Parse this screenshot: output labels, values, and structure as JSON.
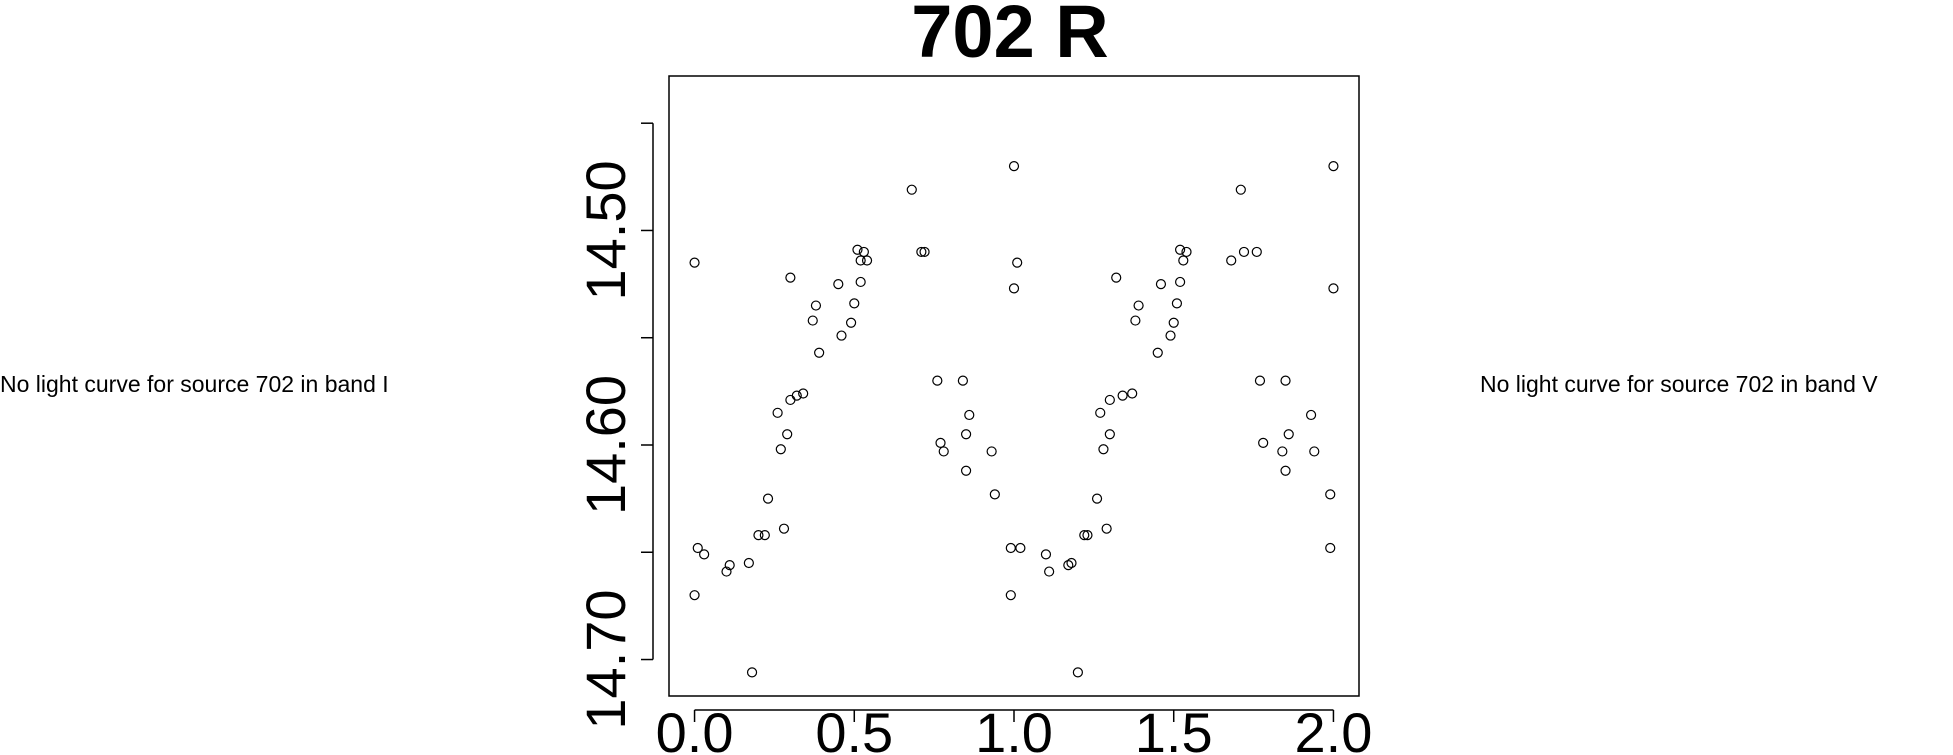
{
  "notes": {
    "left": "No light curve for source 702 in band I",
    "right": "No light curve for source 702 in band V"
  },
  "chart_data": {
    "type": "scatter",
    "title": "702 R",
    "xlabel": "",
    "ylabel": "",
    "xlim": [
      -0.08,
      2.08
    ],
    "ylim": [
      14.717,
      14.428
    ],
    "x_ticks": [
      0.0,
      0.5,
      1.0,
      1.5,
      2.0
    ],
    "x_tick_labels": [
      "0.0",
      "0.5",
      "1.0",
      "1.5",
      "2.0"
    ],
    "y_ticks": [
      14.45,
      14.5,
      14.55,
      14.6,
      14.65,
      14.7
    ],
    "y_tick_labels": [
      "",
      "14.50",
      "",
      "14.60",
      "",
      "14.70"
    ],
    "marker": "open-circle",
    "grid": false,
    "series": [
      {
        "x": [
          0.0,
          0.0,
          0.01,
          0.03,
          0.1,
          0.11,
          0.17,
          0.18,
          0.2,
          0.22,
          0.23,
          0.26,
          0.27,
          0.28,
          0.29,
          0.3,
          0.3,
          0.32,
          0.34,
          0.37,
          0.38,
          0.39,
          0.45,
          0.46,
          0.49,
          0.5,
          0.51,
          0.52,
          0.52,
          0.53,
          0.54,
          0.68,
          0.71,
          0.72,
          0.76,
          0.77,
          0.78,
          0.84,
          0.85,
          0.85,
          0.86,
          0.93,
          0.94,
          0.99,
          0.99,
          1.0,
          1.0,
          1.01,
          1.02,
          1.1,
          1.11,
          1.17,
          1.18,
          1.2,
          1.22,
          1.23,
          1.26,
          1.27,
          1.28,
          1.29,
          1.3,
          1.3,
          1.32,
          1.34,
          1.37,
          1.38,
          1.39,
          1.45,
          1.46,
          1.49,
          1.5,
          1.51,
          1.52,
          1.52,
          1.53,
          1.54,
          1.68,
          1.71,
          1.72,
          1.76,
          1.77,
          1.78,
          1.84,
          1.85,
          1.85,
          1.86,
          1.93,
          1.94,
          1.99,
          1.99,
          2.0,
          2.0
        ],
        "y": [
          14.67,
          14.515,
          14.648,
          14.651,
          14.659,
          14.656,
          14.655,
          14.706,
          14.642,
          14.642,
          14.625,
          14.585,
          14.602,
          14.639,
          14.595,
          14.579,
          14.522,
          14.577,
          14.576,
          14.542,
          14.535,
          14.557,
          14.525,
          14.549,
          14.543,
          14.534,
          14.509,
          14.524,
          14.514,
          14.51,
          14.514,
          14.481,
          14.51,
          14.51,
          14.57,
          14.599,
          14.603,
          14.57,
          14.612,
          14.595,
          14.586,
          14.603,
          14.623,
          14.648,
          14.67,
          14.47,
          14.527,
          14.515,
          14.648,
          14.651,
          14.659,
          14.656,
          14.655,
          14.706,
          14.642,
          14.642,
          14.625,
          14.585,
          14.602,
          14.639,
          14.595,
          14.579,
          14.522,
          14.577,
          14.576,
          14.542,
          14.535,
          14.557,
          14.525,
          14.549,
          14.543,
          14.534,
          14.509,
          14.524,
          14.514,
          14.51,
          14.514,
          14.481,
          14.51,
          14.51,
          14.57,
          14.599,
          14.603,
          14.57,
          14.612,
          14.595,
          14.586,
          14.603,
          14.623,
          14.648,
          14.527,
          14.47
        ]
      }
    ]
  }
}
